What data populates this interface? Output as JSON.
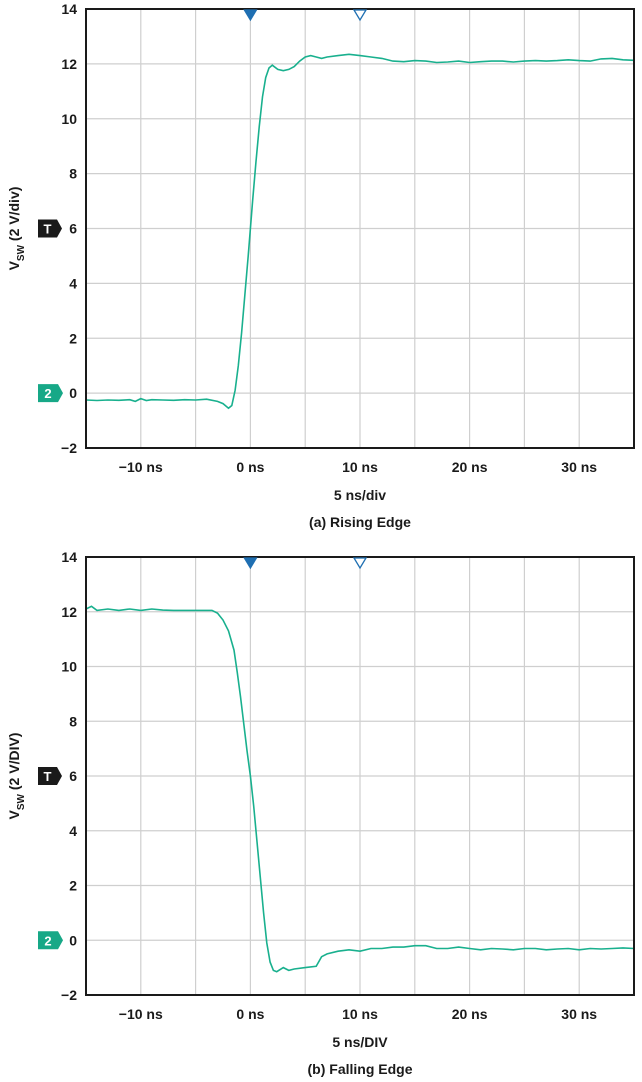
{
  "colors": {
    "trace": "#19b08e",
    "grid": "#cfcfcf",
    "frame": "#1a1a1a",
    "trigger_marker": "#1f6fb2",
    "channel_marker": "#17a887",
    "trigger_level_marker": "#1a1a1a"
  },
  "chart_data": [
    {
      "type": "line",
      "panel_label": "(a) Rising Edge",
      "xlabel": "5 ns/div",
      "ylabel_main": "V",
      "ylabel_sub": "SW",
      "ylabel_rest": " (2 V/div)",
      "xlim": [
        -15,
        35
      ],
      "ylim": [
        -2,
        14
      ],
      "x_ticks": [
        -10,
        0,
        10,
        20,
        30
      ],
      "x_tick_labels": [
        "−10 ns",
        "0 ns",
        "10 ns",
        "20 ns",
        "30 ns"
      ],
      "y_ticks": [
        -2,
        0,
        2,
        4,
        6,
        8,
        10,
        12,
        14
      ],
      "y_tick_labels": [
        "−2",
        "0",
        "2",
        "4",
        "6",
        "8",
        "10",
        "12",
        "14"
      ],
      "grid": true,
      "trigger_level_marker": {
        "label": "T",
        "y": 6
      },
      "channel_marker": {
        "label": "2",
        "y": 0
      },
      "trigger_time_markers": [
        {
          "x": 0,
          "style": "filled"
        },
        {
          "x": 10,
          "style": "hollow"
        }
      ],
      "series": [
        {
          "x": [
            -15,
            -14,
            -13,
            -12,
            -11,
            -10.5,
            -10,
            -9.5,
            -9,
            -8,
            -7,
            -6,
            -5,
            -4,
            -3,
            -2.5,
            -2,
            -1.7,
            -1.4,
            -1.1,
            -0.8,
            -0.5,
            -0.2,
            0,
            0.2,
            0.5,
            0.8,
            1.1,
            1.4,
            1.7,
            2,
            2.5,
            3,
            3.5,
            4,
            4.5,
            5,
            5.5,
            6,
            6.5,
            7,
            8,
            9,
            10,
            11,
            12,
            13,
            14,
            15,
            16,
            17,
            18,
            19,
            20,
            21,
            22,
            23,
            24,
            25,
            26,
            27,
            28,
            29,
            30,
            31,
            32,
            33,
            34,
            35
          ],
          "y": [
            -0.25,
            -0.27,
            -0.25,
            -0.26,
            -0.24,
            -0.3,
            -0.2,
            -0.27,
            -0.24,
            -0.25,
            -0.26,
            -0.24,
            -0.25,
            -0.22,
            -0.3,
            -0.38,
            -0.55,
            -0.45,
            0.1,
            1.0,
            2.2,
            3.6,
            5.0,
            6.0,
            7.0,
            8.4,
            9.7,
            10.8,
            11.5,
            11.85,
            11.95,
            11.8,
            11.75,
            11.8,
            11.9,
            12.1,
            12.25,
            12.3,
            12.25,
            12.2,
            12.25,
            12.3,
            12.35,
            12.3,
            12.25,
            12.2,
            12.1,
            12.08,
            12.12,
            12.1,
            12.05,
            12.07,
            12.1,
            12.05,
            12.08,
            12.1,
            12.1,
            12.07,
            12.1,
            12.12,
            12.1,
            12.12,
            12.15,
            12.12,
            12.1,
            12.18,
            12.2,
            12.15,
            12.13
          ]
        }
      ]
    },
    {
      "type": "line",
      "panel_label": "(b) Falling Edge",
      "xlabel": "5 ns/DIV",
      "ylabel_main": "V",
      "ylabel_sub": "SW",
      "ylabel_rest": " (2 V/DIV)",
      "xlim": [
        -15,
        35
      ],
      "ylim": [
        -2,
        14
      ],
      "x_ticks": [
        -10,
        0,
        10,
        20,
        30
      ],
      "x_tick_labels": [
        "−10 ns",
        "0 ns",
        "10 ns",
        "20 ns",
        "30 ns"
      ],
      "y_ticks": [
        -2,
        0,
        2,
        4,
        6,
        8,
        10,
        12,
        14
      ],
      "y_tick_labels": [
        "−2",
        "0",
        "2",
        "4",
        "6",
        "8",
        "10",
        "12",
        "14"
      ],
      "grid": true,
      "trigger_level_marker": {
        "label": "T",
        "y": 6
      },
      "channel_marker": {
        "label": "2",
        "y": 0
      },
      "trigger_time_markers": [
        {
          "x": 0,
          "style": "filled"
        },
        {
          "x": 10,
          "style": "hollow"
        }
      ],
      "series": [
        {
          "x": [
            -15,
            -14.5,
            -14,
            -13,
            -12,
            -11,
            -10,
            -9,
            -8,
            -7,
            -6,
            -5,
            -4,
            -3.5,
            -3,
            -2.5,
            -2,
            -1.5,
            -1.2,
            -0.9,
            -0.6,
            -0.3,
            0,
            0.3,
            0.6,
            0.9,
            1.2,
            1.5,
            1.8,
            2.1,
            2.4,
            3,
            3.5,
            4,
            5,
            6,
            6.5,
            7,
            8,
            9,
            10,
            11,
            12,
            13,
            14,
            15,
            16,
            17,
            18,
            19,
            20,
            21,
            22,
            23,
            24,
            25,
            26,
            27,
            28,
            29,
            30,
            31,
            32,
            33,
            34,
            35
          ],
          "y": [
            12.1,
            12.2,
            12.05,
            12.1,
            12.05,
            12.1,
            12.05,
            12.1,
            12.06,
            12.05,
            12.05,
            12.05,
            12.05,
            12.05,
            11.95,
            11.7,
            11.3,
            10.6,
            9.8,
            8.9,
            7.9,
            6.9,
            6.0,
            4.9,
            3.6,
            2.3,
            1.0,
            -0.1,
            -0.8,
            -1.1,
            -1.15,
            -1.0,
            -1.1,
            -1.05,
            -1.0,
            -0.95,
            -0.6,
            -0.5,
            -0.4,
            -0.35,
            -0.4,
            -0.3,
            -0.3,
            -0.25,
            -0.25,
            -0.2,
            -0.2,
            -0.3,
            -0.3,
            -0.25,
            -0.3,
            -0.35,
            -0.3,
            -0.32,
            -0.35,
            -0.3,
            -0.3,
            -0.35,
            -0.32,
            -0.3,
            -0.35,
            -0.3,
            -0.32,
            -0.3,
            -0.28,
            -0.3
          ]
        }
      ]
    }
  ]
}
